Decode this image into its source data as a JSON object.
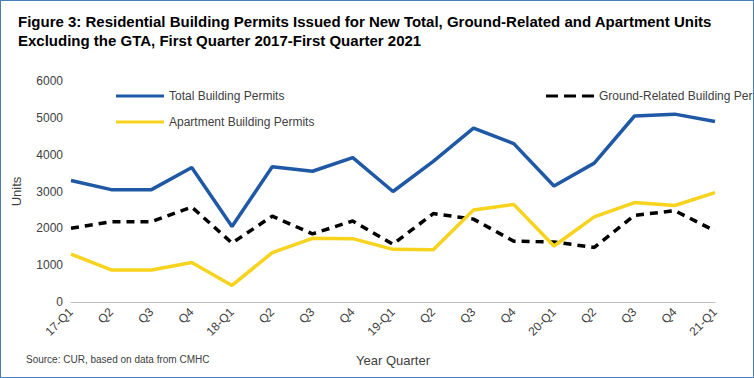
{
  "chart_data": {
    "type": "line",
    "title": "Figure 3: Residential Building Permits Issued for New Total, Ground-Related and Apartment Units Excluding the GTA, First Quarter 2017-First Quarter 2021",
    "x_label": "Year Quarter",
    "y_label": "Units",
    "source": "Source: CUR, based on data from CMHC",
    "categories": [
      "17-Q1",
      "Q2",
      "Q3",
      "Q4",
      "18-Q1",
      "Q2",
      "Q3",
      "Q4",
      "19-Q1",
      "Q2",
      "Q3",
      "Q4",
      "20-Q1",
      "Q2",
      "Q3",
      "Q4",
      "21-Q1"
    ],
    "series": [
      {
        "name": "Total Building Permits",
        "color": "#1f58a5",
        "line_style": "solid",
        "values": [
          3300,
          3050,
          3050,
          3650,
          2050,
          3670,
          3550,
          3920,
          3000,
          3820,
          4720,
          4300,
          3150,
          3770,
          5050,
          5100,
          4900
        ]
      },
      {
        "name": "Ground-Related Building Permits",
        "color": "#000000",
        "line_style": "dashed",
        "values": [
          2000,
          2180,
          2180,
          2580,
          1600,
          2330,
          1850,
          2200,
          1570,
          2400,
          2250,
          1650,
          1630,
          1480,
          2350,
          2480,
          1930
        ]
      },
      {
        "name": "Apartment Building Permits",
        "color": "#f7d31e",
        "line_style": "solid",
        "values": [
          1300,
          870,
          870,
          1070,
          450,
          1340,
          1730,
          1720,
          1430,
          1420,
          2500,
          2650,
          1520,
          2310,
          2700,
          2620,
          2970
        ]
      }
    ],
    "ylim": [
      0,
      6000
    ],
    "yticks": [
      0,
      1000,
      2000,
      3000,
      4000,
      5000,
      6000
    ],
    "grid": false,
    "legend": "top"
  }
}
